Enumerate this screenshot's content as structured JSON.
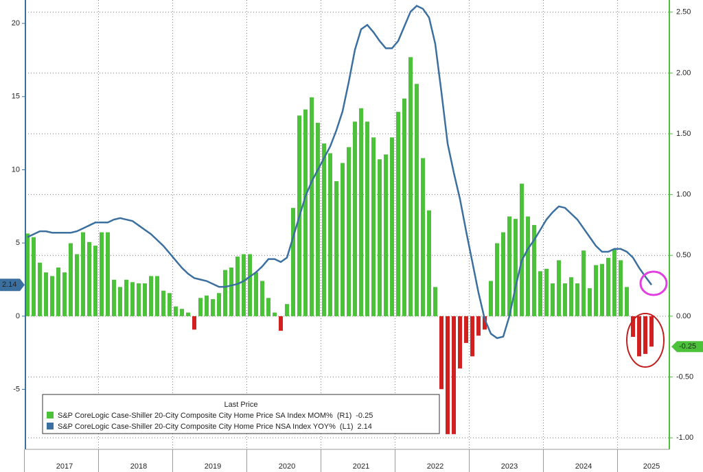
{
  "chart_data": {
    "type": "bar_line",
    "legend_title": "Last Price",
    "categories": [
      null,
      null,
      null,
      null,
      null,
      null,
      "2017",
      null,
      null,
      null,
      null,
      null,
      null,
      null,
      null,
      null,
      null,
      null,
      "2018",
      null,
      null,
      null,
      null,
      null,
      null,
      null,
      null,
      null,
      null,
      null,
      "2019",
      null,
      null,
      null,
      null,
      null,
      null,
      null,
      null,
      null,
      null,
      null,
      "2020",
      null,
      null,
      null,
      null,
      null,
      null,
      null,
      null,
      null,
      null,
      null,
      "2021",
      null,
      null,
      null,
      null,
      null,
      null,
      null,
      null,
      null,
      null,
      null,
      "2022",
      null,
      null,
      null,
      null,
      null,
      null,
      null,
      null,
      null,
      null,
      null,
      "2023",
      null,
      null,
      null,
      null,
      null,
      null,
      null,
      null,
      null,
      null,
      null,
      "2024",
      null,
      null,
      null,
      null,
      null,
      null,
      null,
      null,
      null,
      null,
      "2025"
    ],
    "ylim": [
      -9.1,
      21.6
    ],
    "yticks": [
      -5,
      0,
      5,
      10,
      15,
      20
    ],
    "y2lim": [
      -1.095,
      2.6
    ],
    "y2ticks": [
      {
        "value": -1,
        "label": "-1.00"
      },
      {
        "value": -0.5,
        "label": "-0.50"
      },
      {
        "value": 0,
        "label": "0.00"
      },
      {
        "value": 0.5,
        "label": "0.50"
      },
      {
        "value": 1,
        "label": "1.00"
      },
      {
        "value": 1.5,
        "label": "1.50"
      },
      {
        "value": 2,
        "label": "2.00"
      },
      {
        "value": 2.5,
        "label": "2.50"
      }
    ],
    "grid": true,
    "series": [
      {
        "name": "S&P CoreLogic Case-Shiller 20-City Composite City Home Price SA Index MOM%",
        "axis_label": "(R1)",
        "axis": "y2",
        "type": "bar",
        "color": "#4cc23a",
        "negative_color": "#d21f1f",
        "values": [
          0.68,
          0.65,
          0.44,
          0.36,
          0.33,
          0.4,
          0.36,
          0.6,
          0.51,
          0.69,
          0.61,
          0.58,
          0.69,
          0.69,
          0.3,
          0.24,
          0.3,
          0.28,
          0.27,
          0.27,
          0.33,
          0.33,
          0.21,
          0.19,
          0.08,
          0.06,
          0.03,
          -0.11,
          0.15,
          0.17,
          0.14,
          0.19,
          0.38,
          0.4,
          0.49,
          0.51,
          0.51,
          0.36,
          0.29,
          0.15,
          0.03,
          -0.12,
          0.1,
          0.89,
          1.65,
          1.7,
          1.8,
          1.59,
          1.42,
          1.34,
          1.11,
          1.26,
          1.39,
          1.6,
          1.71,
          1.6,
          1.47,
          1.29,
          1.33,
          1.47,
          1.68,
          1.79,
          2.13,
          1.91,
          1.3,
          0.87,
          0.24,
          -0.6,
          -0.97,
          -0.97,
          -0.43,
          -0.22,
          -0.33,
          -0.16,
          -0.11,
          0.29,
          0.6,
          0.69,
          0.82,
          0.8,
          1.09,
          0.82,
          0.75,
          0.37,
          0.39,
          0.27,
          0.46,
          0.27,
          0.32,
          0.27,
          0.54,
          0.23,
          0.42,
          0.43,
          0.48,
          0.55,
          0.46,
          0.24,
          -0.17,
          -0.33,
          -0.31,
          -0.25
        ]
      },
      {
        "name": "S&P CoreLogic Case-Shiller 20-City Composite City Home Price NSA Index YOY%",
        "axis_label": "(L1)",
        "axis": "y",
        "type": "line",
        "color": "#3a6f9f",
        "values": [
          5.4,
          5.6,
          5.8,
          5.8,
          5.7,
          5.7,
          5.7,
          5.7,
          5.8,
          6.0,
          6.2,
          6.4,
          6.4,
          6.4,
          6.6,
          6.7,
          6.6,
          6.5,
          6.2,
          5.9,
          5.6,
          5.2,
          4.8,
          4.3,
          3.8,
          3.3,
          2.9,
          2.6,
          2.5,
          2.4,
          2.2,
          2.0,
          2.0,
          2.1,
          2.2,
          2.4,
          2.7,
          3.0,
          3.4,
          3.9,
          3.9,
          3.7,
          4.0,
          5.4,
          6.8,
          8.2,
          9.2,
          10.0,
          10.8,
          11.6,
          12.7,
          14.0,
          16.0,
          18.2,
          19.6,
          19.9,
          19.4,
          18.8,
          18.3,
          18.3,
          18.8,
          19.8,
          20.8,
          21.2,
          21.0,
          20.4,
          18.6,
          15.3,
          11.8,
          9.8,
          8.0,
          5.8,
          3.7,
          1.6,
          -0.2,
          -1.2,
          -1.5,
          -1.4,
          0.0,
          2.0,
          3.8,
          4.6,
          5.2,
          5.9,
          6.6,
          7.1,
          7.5,
          7.4,
          7.0,
          6.6,
          6.0,
          5.4,
          4.8,
          4.4,
          4.4,
          4.6,
          4.6,
          4.4,
          4.0,
          3.3,
          2.7,
          2.14
        ]
      }
    ]
  }
}
